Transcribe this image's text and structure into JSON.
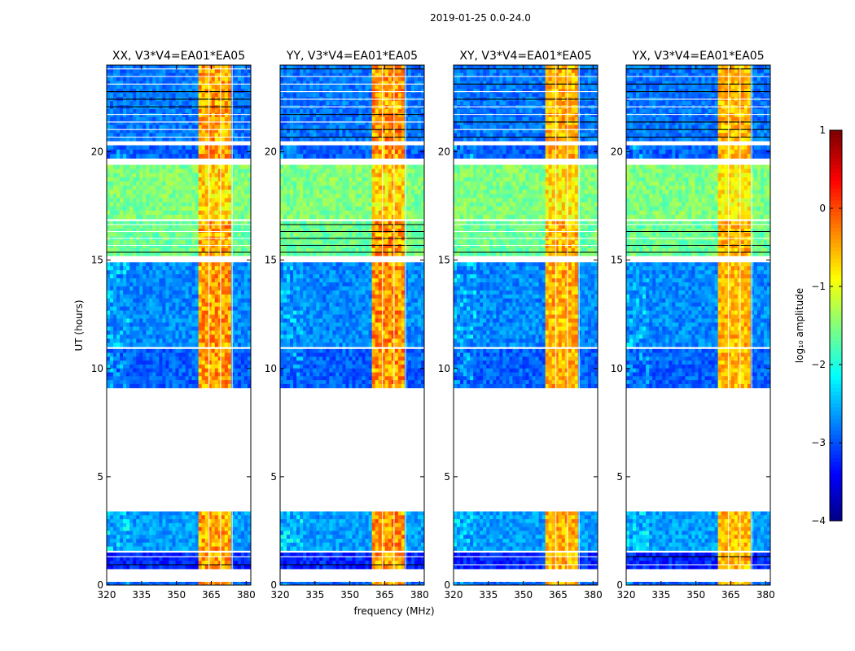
{
  "figure": {
    "suptitle": "2019-01-25 0.0-24.0",
    "xlabel": "frequency (MHz)",
    "ylabel": "UT (hours)"
  },
  "chart_data": {
    "type": "heatmap",
    "title": "2019-01-25 0.0-24.0",
    "xlabel": "frequency (MHz)",
    "ylabel": "UT (hours)",
    "xlim": [
      320,
      382
    ],
    "ylim": [
      0,
      24
    ],
    "xticks": [
      "320",
      "335",
      "350",
      "365",
      "380"
    ],
    "xtick_values": [
      320,
      335,
      350,
      365,
      380
    ],
    "yticks": [
      "0",
      "5",
      "10",
      "15",
      "20"
    ],
    "ytick_values": [
      0,
      5,
      10,
      15,
      20
    ],
    "panels": [
      {
        "key": "xx",
        "title": "XX, V3*V4=EA01*EA05",
        "band_strength": 1.0
      },
      {
        "key": "yy",
        "title": "YY, V3*V4=EA01*EA05",
        "band_strength": 1.05
      },
      {
        "key": "xy",
        "title": "XY, V3*V4=EA01*EA05",
        "band_strength": 0.85
      },
      {
        "key": "yx",
        "title": "YX, V3*V4=EA01*EA05",
        "band_strength": 0.8
      }
    ],
    "bright_band_mhz": [
      359,
      374
    ],
    "band_channel_gaps_mhz": [
      364,
      369,
      374
    ],
    "time_blocks": [
      {
        "t0": 0.0,
        "t1": 0.15,
        "level": -2.9,
        "kind": "quiet"
      },
      {
        "t0": 0.75,
        "t1": 1.5,
        "level": -3.2,
        "kind": "flagged"
      },
      {
        "t0": 1.6,
        "t1": 3.4,
        "level": -2.6,
        "kind": "quiet"
      },
      {
        "t0": 9.1,
        "t1": 10.9,
        "level": -2.9,
        "kind": "quiet"
      },
      {
        "t0": 11.0,
        "t1": 14.9,
        "level": -2.7,
        "kind": "quiet"
      },
      {
        "t0": 15.2,
        "t1": 16.8,
        "level": -1.6,
        "kind": "flagged"
      },
      {
        "t0": 16.9,
        "t1": 19.4,
        "level": -1.5,
        "kind": "rfi"
      },
      {
        "t0": 19.7,
        "t1": 20.3,
        "level": -2.9,
        "kind": "quiet"
      },
      {
        "t0": 20.5,
        "t1": 24.0,
        "level": -2.8,
        "kind": "flagged"
      }
    ],
    "colorbar": {
      "label": "log₁₀ amplitude",
      "min": -4,
      "max": 1,
      "ticks": [
        "−4",
        "−3",
        "−2",
        "−1",
        "0",
        "1"
      ],
      "tick_values": [
        -4,
        -3,
        -2,
        -1,
        0,
        1
      ],
      "colormap": "jet"
    }
  }
}
